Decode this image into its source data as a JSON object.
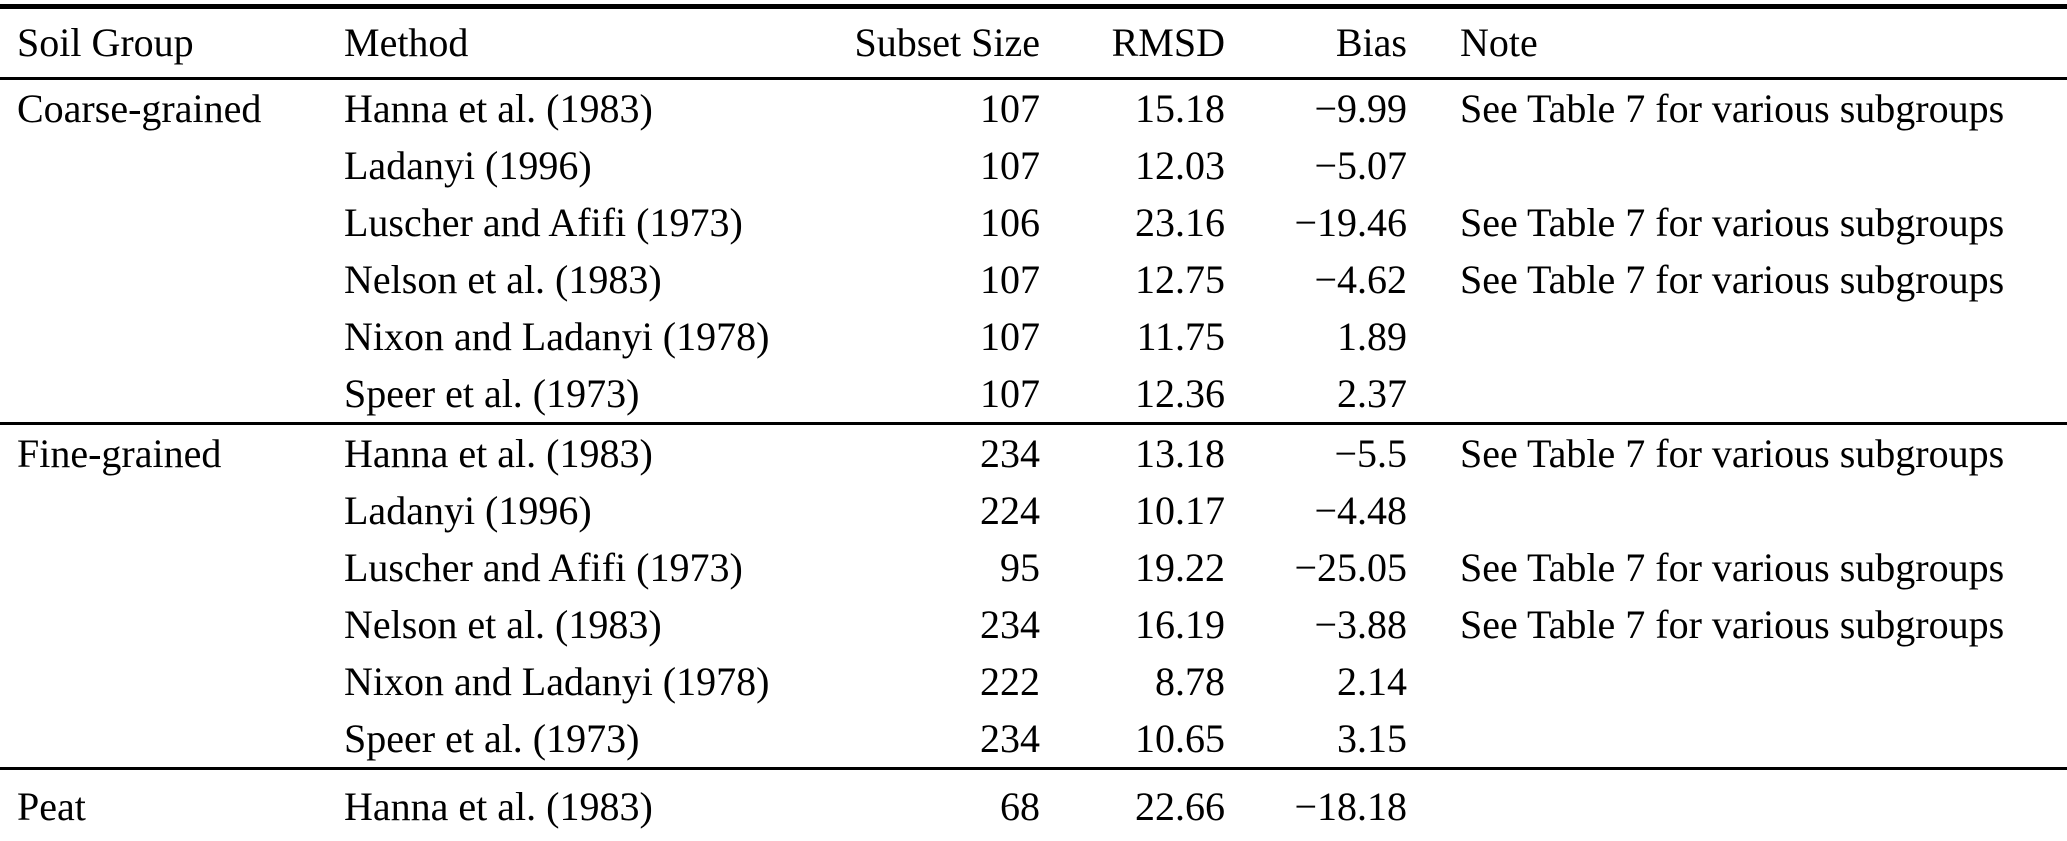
{
  "table": {
    "headers": {
      "soil_group": "Soil Group",
      "method": "Method",
      "subset_size": "Subset Size",
      "rmsd": "RMSD",
      "bias": "Bias",
      "note": "Note"
    },
    "groups": [
      {
        "name": "Coarse-grained",
        "rows": [
          {
            "method": "Hanna et al. (1983)",
            "subset_size": "107",
            "rmsd": "15.18",
            "bias": "−9.99",
            "note": "See Table 7 for various subgroups"
          },
          {
            "method": "Ladanyi (1996)",
            "subset_size": "107",
            "rmsd": "12.03",
            "bias": "−5.07",
            "note": ""
          },
          {
            "method": "Luscher and Afifi (1973)",
            "subset_size": "106",
            "rmsd": "23.16",
            "bias": "−19.46",
            "note": "See Table 7 for various subgroups"
          },
          {
            "method": "Nelson et al. (1983)",
            "subset_size": "107",
            "rmsd": "12.75",
            "bias": "−4.62",
            "note": "See Table 7 for various subgroups"
          },
          {
            "method": "Nixon and Ladanyi (1978)",
            "subset_size": "107",
            "rmsd": "11.75",
            "bias": "1.89",
            "note": ""
          },
          {
            "method": "Speer et al. (1973)",
            "subset_size": "107",
            "rmsd": "12.36",
            "bias": "2.37",
            "note": ""
          }
        ]
      },
      {
        "name": "Fine-grained",
        "rows": [
          {
            "method": "Hanna et al. (1983)",
            "subset_size": "234",
            "rmsd": "13.18",
            "bias": "−5.5",
            "note": "See Table 7 for various subgroups"
          },
          {
            "method": "Ladanyi (1996)",
            "subset_size": "224",
            "rmsd": "10.17",
            "bias": "−4.48",
            "note": ""
          },
          {
            "method": "Luscher and Afifi (1973)",
            "subset_size": "95",
            "rmsd": "19.22",
            "bias": "−25.05",
            "note": "See Table 7 for various subgroups"
          },
          {
            "method": "Nelson et al. (1983)",
            "subset_size": "234",
            "rmsd": "16.19",
            "bias": "−3.88",
            "note": "See Table 7 for various subgroups"
          },
          {
            "method": "Nixon and Ladanyi (1978)",
            "subset_size": "222",
            "rmsd": "8.78",
            "bias": "2.14",
            "note": ""
          },
          {
            "method": "Speer et al. (1973)",
            "subset_size": "234",
            "rmsd": "10.65",
            "bias": "3.15",
            "note": ""
          }
        ]
      },
      {
        "name": "Peat",
        "rows": [
          {
            "method": "Hanna et al. (1983)",
            "subset_size": "68",
            "rmsd": "22.66",
            "bias": "−18.18",
            "note": ""
          }
        ]
      }
    ]
  }
}
